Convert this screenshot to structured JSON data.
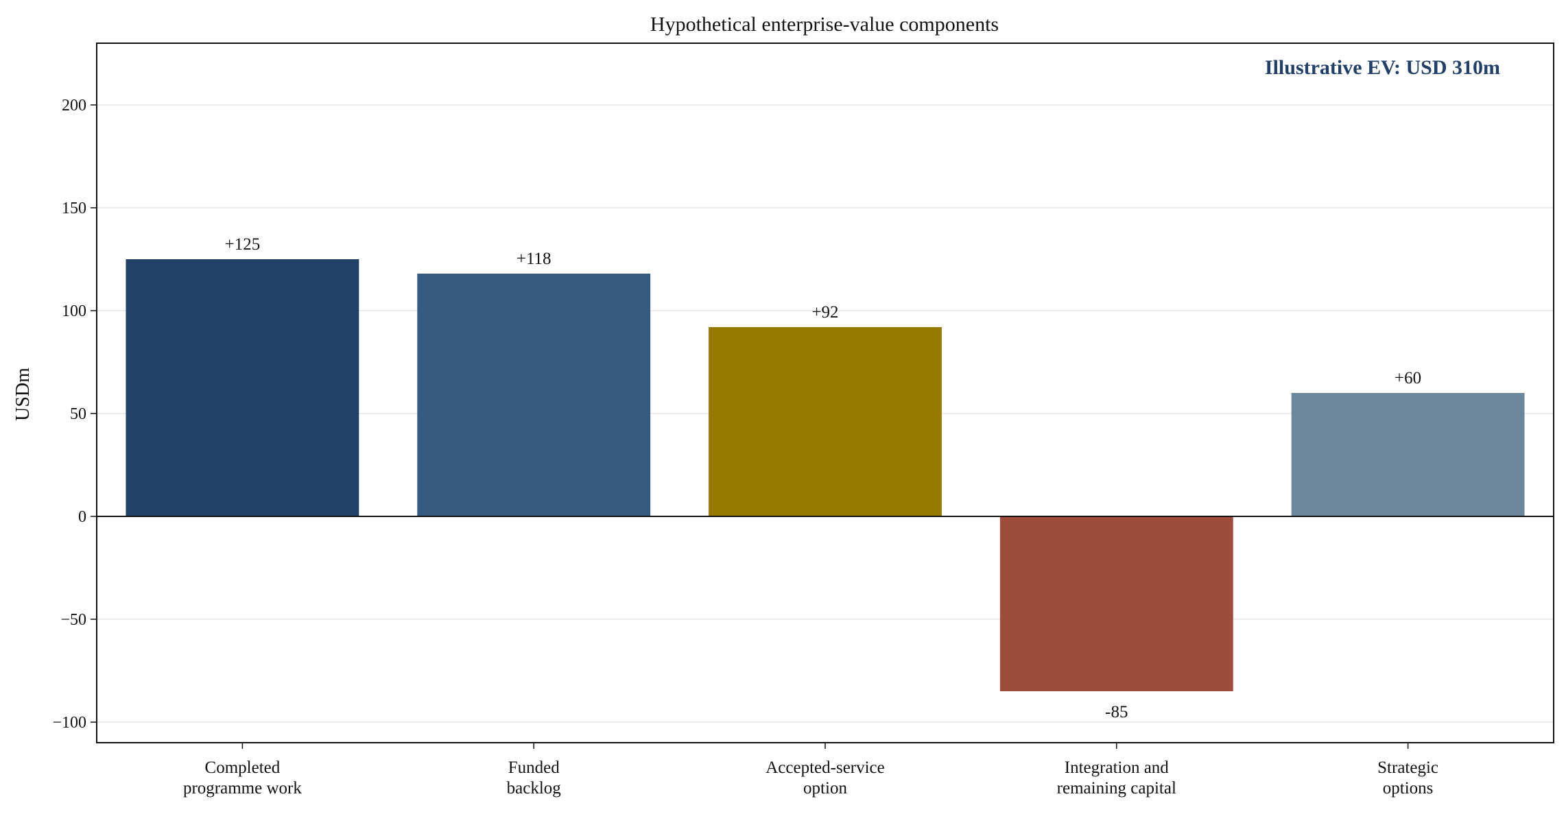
{
  "chart_data": {
    "type": "bar",
    "title": "Hypothetical enterprise-value components",
    "xlabel": "",
    "ylabel": "USDm",
    "ylim": [
      -110,
      230
    ],
    "yticks": [
      -100,
      -50,
      0,
      50,
      100,
      150,
      200
    ],
    "ytick_labels": [
      "−100",
      "−50",
      "0",
      "50",
      "100",
      "150",
      "200"
    ],
    "grid": true,
    "categories": [
      [
        "Completed",
        "programme work"
      ],
      [
        "Funded",
        "backlog"
      ],
      [
        "Accepted-service",
        "option"
      ],
      [
        "Integration and",
        "remaining capital"
      ],
      [
        "Strategic",
        "options"
      ]
    ],
    "values": [
      125,
      118,
      92,
      -85,
      60
    ],
    "value_labels": [
      "+125",
      "+118",
      "+92",
      "-85",
      "+60"
    ],
    "colors": [
      "#213f67",
      "#365a80",
      "#977800",
      "#9e4d3d",
      "#6c869c"
    ],
    "annotation": {
      "text": "Illustrative EV: USD 310m",
      "color": "#213f67",
      "placement": "top-right"
    }
  }
}
